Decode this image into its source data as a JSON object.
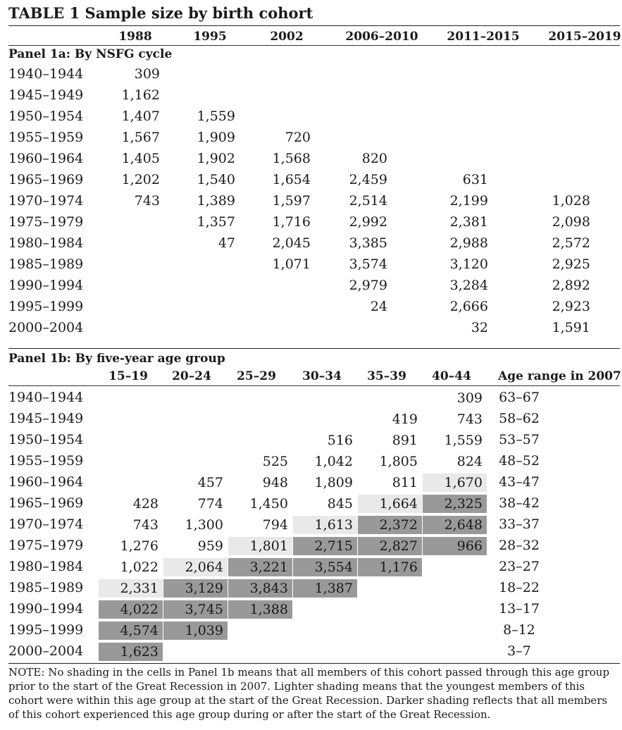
{
  "title": "TABLE 1  Sample size by birth cohort",
  "panel_a": {
    "heading": "Panel 1a: By NSFG cycle",
    "columns": [
      "1988",
      "1995",
      "2002",
      "2006–2010",
      "2011–2015",
      "2015–2019"
    ],
    "rows": [
      {
        "label": "1940–1944",
        "values": [
          "309",
          "",
          "",
          "",
          "",
          ""
        ]
      },
      {
        "label": "1945–1949",
        "values": [
          "1,162",
          "",
          "",
          "",
          "",
          ""
        ]
      },
      {
        "label": "1950–1954",
        "values": [
          "1,407",
          "1,559",
          "",
          "",
          "",
          ""
        ]
      },
      {
        "label": "1955–1959",
        "values": [
          "1,567",
          "1,909",
          "720",
          "",
          "",
          ""
        ]
      },
      {
        "label": "1960–1964",
        "values": [
          "1,405",
          "1,902",
          "1,568",
          "820",
          "",
          ""
        ]
      },
      {
        "label": "1965–1969",
        "values": [
          "1,202",
          "1,540",
          "1,654",
          "2,459",
          "631",
          ""
        ]
      },
      {
        "label": "1970–1974",
        "values": [
          "743",
          "1,389",
          "1,597",
          "2,514",
          "2,199",
          "1,028"
        ]
      },
      {
        "label": "1975–1979",
        "values": [
          "",
          "1,357",
          "1,716",
          "2,992",
          "2,381",
          "2,098"
        ]
      },
      {
        "label": "1980–1984",
        "values": [
          "",
          "47",
          "2,045",
          "3,385",
          "2,988",
          "2,572"
        ]
      },
      {
        "label": "1985–1989",
        "values": [
          "",
          "",
          "1,071",
          "3,574",
          "3,120",
          "2,925"
        ]
      },
      {
        "label": "1990–1994",
        "values": [
          "",
          "",
          "",
          "2,979",
          "3,284",
          "2,892"
        ]
      },
      {
        "label": "1995–1999",
        "values": [
          "",
          "",
          "",
          "24",
          "2,666",
          "2,923"
        ]
      },
      {
        "label": "2000–2004",
        "values": [
          "",
          "",
          "",
          "",
          "32",
          "1,591"
        ]
      }
    ]
  },
  "panel_b": {
    "heading": "Panel 1b: By five-year age group",
    "columns": [
      "15–19",
      "20–24",
      "25–29",
      "30–34",
      "35–39",
      "40–44",
      "Age range in 2007"
    ],
    "rows": [
      {
        "label": "1940–1944",
        "values": [
          "",
          "",
          "",
          "",
          "",
          "309"
        ],
        "shade": [
          "",
          "",
          "",
          "",
          "",
          ""
        ],
        "age": "63–67"
      },
      {
        "label": "1945–1949",
        "values": [
          "",
          "",
          "",
          "",
          "419",
          "743"
        ],
        "shade": [
          "",
          "",
          "",
          "",
          "",
          ""
        ],
        "age": "58–62"
      },
      {
        "label": "1950–1954",
        "values": [
          "",
          "",
          "",
          "516",
          "891",
          "1,559"
        ],
        "shade": [
          "",
          "",
          "",
          "",
          "",
          ""
        ],
        "age": "53–57"
      },
      {
        "label": "1955–1959",
        "values": [
          "",
          "",
          "525",
          "1,042",
          "1,805",
          "824"
        ],
        "shade": [
          "",
          "",
          "",
          "",
          "",
          ""
        ],
        "age": "48–52"
      },
      {
        "label": "1960–1964",
        "values": [
          "",
          "457",
          "948",
          "1,809",
          "811",
          "1,670"
        ],
        "shade": [
          "",
          "",
          "",
          "",
          "",
          "light"
        ],
        "age": "43–47"
      },
      {
        "label": "1965–1969",
        "values": [
          "428",
          "774",
          "1,450",
          "845",
          "1,664",
          "2,325"
        ],
        "shade": [
          "",
          "",
          "",
          "",
          "light",
          "dark"
        ],
        "age": "38–42"
      },
      {
        "label": "1970–1974",
        "values": [
          "743",
          "1,300",
          "794",
          "1,613",
          "2,372",
          "2,648"
        ],
        "shade": [
          "",
          "",
          "",
          "light",
          "dark",
          "dark"
        ],
        "age": "33–37"
      },
      {
        "label": "1975–1979",
        "values": [
          "1,276",
          "959",
          "1,801",
          "2,715",
          "2,827",
          "966"
        ],
        "shade": [
          "",
          "",
          "light",
          "dark",
          "dark",
          "dark"
        ],
        "age": "28–32"
      },
      {
        "label": "1980–1984",
        "values": [
          "1,022",
          "2,064",
          "3,221",
          "3,554",
          "1,176",
          ""
        ],
        "shade": [
          "",
          "light",
          "dark",
          "dark",
          "dark",
          ""
        ],
        "age": "23–27"
      },
      {
        "label": "1985–1989",
        "values": [
          "2,331",
          "3,129",
          "3,843",
          "1,387",
          "",
          ""
        ],
        "shade": [
          "light",
          "dark",
          "dark",
          "dark",
          "",
          ""
        ],
        "age": "18–22"
      },
      {
        "label": "1990–1994",
        "values": [
          "4,022",
          "3,745",
          "1,388",
          "",
          "",
          ""
        ],
        "shade": [
          "dark",
          "dark",
          "dark",
          "",
          "",
          ""
        ],
        "age": "13–17"
      },
      {
        "label": "1995–1999",
        "values": [
          "4,574",
          "1,039",
          "",
          "",
          "",
          ""
        ],
        "shade": [
          "dark",
          "dark",
          "",
          "",
          "",
          ""
        ],
        "age": "8–12"
      },
      {
        "label": "2000–2004",
        "values": [
          "1,623",
          "",
          "",
          "",
          "",
          ""
        ],
        "shade": [
          "dark",
          "",
          "",
          "",
          "",
          ""
        ],
        "age": "3–7"
      }
    ]
  },
  "note": "NOTE: No shading in the cells in Panel 1b means that all members of this cohort passed through this age group prior to the start of the Great Recession in 2007. Lighter shading means that the youngest members of this cohort were within this age group at the start of the Great Recession. Darker shading reflects that all members of this cohort experienced this age group during or after the start of the Great Recession."
}
